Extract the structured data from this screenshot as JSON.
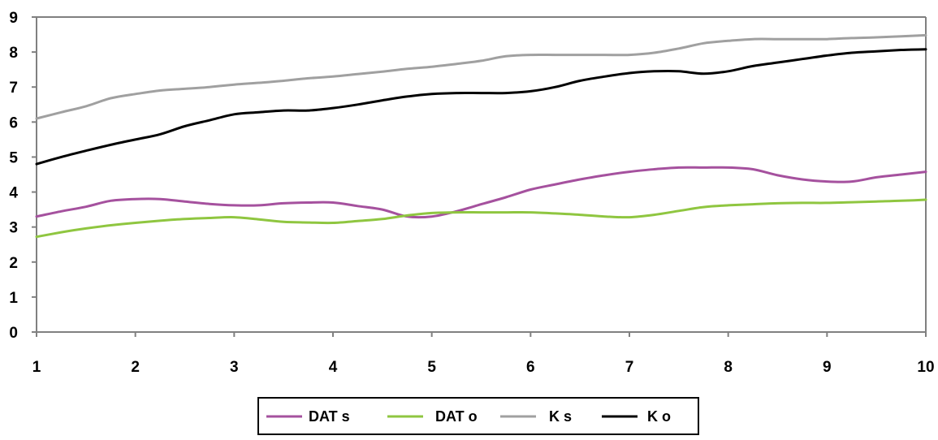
{
  "chart_data": {
    "type": "line",
    "x": [
      1,
      1.25,
      1.5,
      1.75,
      2,
      2.25,
      2.5,
      2.75,
      3,
      3.25,
      3.5,
      3.75,
      4,
      4.25,
      4.5,
      4.75,
      5,
      5.25,
      5.5,
      5.75,
      6,
      6.25,
      6.5,
      6.75,
      7,
      7.25,
      7.5,
      7.75,
      8,
      8.25,
      8.5,
      8.75,
      9,
      9.25,
      9.5,
      9.75,
      10
    ],
    "series": [
      {
        "name": "DAT s",
        "color": "#a5519e",
        "values": [
          3.3,
          3.45,
          3.58,
          3.75,
          3.8,
          3.8,
          3.73,
          3.66,
          3.62,
          3.62,
          3.68,
          3.7,
          3.7,
          3.6,
          3.5,
          3.3,
          3.3,
          3.45,
          3.65,
          3.85,
          4.07,
          4.22,
          4.36,
          4.48,
          4.58,
          4.65,
          4.7,
          4.7,
          4.7,
          4.65,
          4.48,
          4.36,
          4.3,
          4.3,
          4.42,
          4.5,
          4.58
        ]
      },
      {
        "name": "DAT o",
        "color": "#8fc640",
        "values": [
          2.72,
          2.85,
          2.96,
          3.05,
          3.12,
          3.18,
          3.23,
          3.26,
          3.28,
          3.22,
          3.15,
          3.13,
          3.12,
          3.17,
          3.23,
          3.33,
          3.4,
          3.42,
          3.42,
          3.42,
          3.42,
          3.39,
          3.35,
          3.3,
          3.28,
          3.35,
          3.46,
          3.57,
          3.62,
          3.65,
          3.68,
          3.69,
          3.69,
          3.71,
          3.73,
          3.75,
          3.78
        ]
      },
      {
        "name": "K s",
        "color": "#a0a0a0",
        "values": [
          6.1,
          6.28,
          6.45,
          6.68,
          6.8,
          6.9,
          6.95,
          7.0,
          7.07,
          7.12,
          7.18,
          7.25,
          7.3,
          7.37,
          7.44,
          7.52,
          7.58,
          7.66,
          7.75,
          7.88,
          7.92,
          7.92,
          7.92,
          7.92,
          7.92,
          7.98,
          8.1,
          8.25,
          8.32,
          8.37,
          8.37,
          8.37,
          8.37,
          8.4,
          8.42,
          8.45,
          8.48
        ]
      },
      {
        "name": "K o",
        "color": "#000000",
        "values": [
          4.8,
          5.0,
          5.18,
          5.35,
          5.5,
          5.65,
          5.88,
          6.05,
          6.22,
          6.28,
          6.33,
          6.33,
          6.4,
          6.5,
          6.62,
          6.73,
          6.8,
          6.83,
          6.83,
          6.83,
          6.88,
          7.0,
          7.18,
          7.3,
          7.4,
          7.45,
          7.45,
          7.38,
          7.45,
          7.6,
          7.7,
          7.8,
          7.9,
          7.98,
          8.02,
          8.06,
          8.08
        ]
      }
    ],
    "x_ticks": [
      "1",
      "2",
      "3",
      "4",
      "5",
      "6",
      "7",
      "8",
      "9",
      "10"
    ],
    "y_ticks": [
      "0",
      "1",
      "2",
      "3",
      "4",
      "5",
      "6",
      "7",
      "8",
      "9"
    ],
    "xlim": [
      1,
      10
    ],
    "ylim": [
      0,
      9
    ],
    "grid": false,
    "legend_position": "bottom",
    "axis_color": "#808080"
  }
}
